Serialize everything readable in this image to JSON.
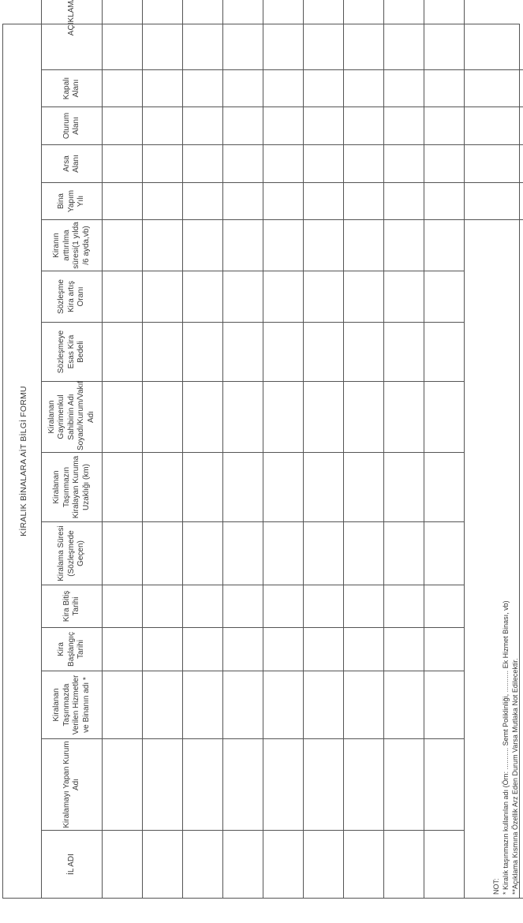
{
  "title": "KİRALIK BİNALARA AİT BİLGİ FORMU",
  "headers": [
    "İL ADI",
    "Kiralamayı Yapan Kurum Adı",
    "Kiralanan Taşınmazda Verilen Hizmetler ve Binanın adı *",
    "Kira Başlangıç Tarihi",
    "Kira Bitiş Tarihi",
    "Kiralama Süresi (Sözleşmede Geçen)",
    "Kiralanan Taşınmazın Kiralayan Kuruma Uzaklığı (km)",
    "Kiralanan Gayrimenkul Sahibinin Adı Soyadı/Kurum/Vakıf Adı",
    "Sözleşmeye Esas Kira Bedeli",
    "Sözleşme Kira artış Oranı",
    "Kiranın arttırılma süresi(1 yılda /6 ayda,vb)",
    "Bina Yapım Yılı",
    "Arsa Alanı",
    "Oturum Alanı",
    "Kapalı Alanı",
    "AÇIKLAMA**"
  ],
  "note": {
    "label": "NOT:",
    "line1": "* Kiralık taşınmazın kullanılan adı (Örn: ........... Semt Poliklinliği, ........... Ek Hizmet Binası, vb)",
    "line2": "**Açıklama Kısmına Özellik Arz Eden Durum Varsa Mutlaka Not Edilecektir."
  }
}
